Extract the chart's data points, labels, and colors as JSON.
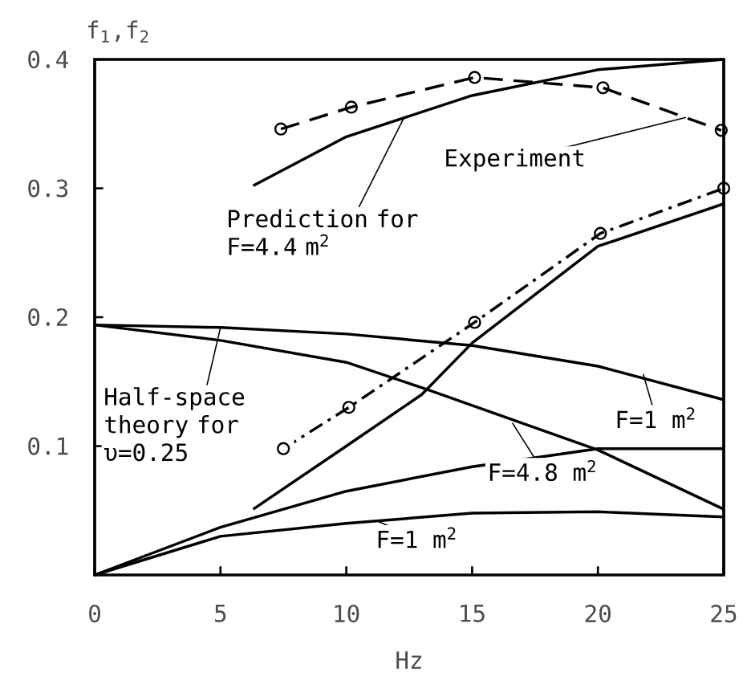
{
  "chart_data": {
    "type": "line",
    "xlabel": "Hz",
    "ylabel": "f$_{1}$,f$_{2}$",
    "xlim": [
      0,
      25
    ],
    "ylim": [
      0,
      0.4
    ],
    "xticks": [
      0,
      5,
      10,
      15,
      20,
      25
    ],
    "yticks": [
      0.1,
      0.2,
      0.3,
      0.4
    ],
    "series": [
      {
        "color": "#000000",
        "marker": "circle",
        "line_style": "dashed",
        "x": [
          7.4,
          10.2,
          15.1,
          20.2,
          24.9
        ],
        "values": [
          0.346,
          0.363,
          0.386,
          0.378,
          0.345
        ]
      },
      {
        "color": "#000000",
        "line_style": "solid",
        "x": [
          6.3,
          10,
          15,
          20,
          25
        ],
        "values": [
          0.302,
          0.34,
          0.372,
          0.392,
          0.4
        ]
      },
      {
        "color": "#000000",
        "marker": "circle",
        "line_style": "dashdot",
        "x": [
          7.5,
          10.1,
          15.1,
          20.1,
          25
        ],
        "values": [
          0.098,
          0.13,
          0.196,
          0.265,
          0.3
        ]
      },
      {
        "color": "#000000",
        "line_style": "solid",
        "x": [
          6.3,
          10,
          13,
          15,
          20,
          25
        ],
        "values": [
          0.051,
          0.1,
          0.14,
          0.18,
          0.255,
          0.288
        ]
      },
      {
        "color": "#000000",
        "line_style": "solid",
        "x": [
          0,
          5,
          10,
          15,
          20,
          25
        ],
        "values": [
          0.194,
          0.192,
          0.187,
          0.178,
          0.162,
          0.136
        ]
      },
      {
        "color": "#000000",
        "line_style": "solid",
        "x": [
          0,
          5,
          10,
          13.2,
          20,
          25
        ],
        "values": [
          0.194,
          0.182,
          0.165,
          0.144,
          0.097,
          0.051
        ]
      },
      {
        "color": "#000000",
        "line_style": "solid",
        "x": [
          0,
          5,
          10,
          15,
          20,
          25
        ],
        "values": [
          0,
          0.037,
          0.065,
          0.084,
          0.098,
          0.098
        ]
      },
      {
        "color": "#000000",
        "line_style": "solid",
        "x": [
          0,
          5,
          10,
          15,
          20,
          25
        ],
        "values": [
          0,
          0.03,
          0.04,
          0.048,
          0.049,
          0.045
        ]
      }
    ],
    "annotations": [
      {
        "text": "Experiment",
        "x": 23.5,
        "y": 0.355
      },
      {
        "text": "Prediction for F=4.4 m$^{2}$",
        "x": 12.3,
        "y": 0.355
      },
      {
        "text": "Half-space theory for υ=0.25",
        "x": 5,
        "y": 0.192
      },
      {
        "text": "F=1 m$^{2}$",
        "x": 21.8,
        "y": 0.156
      },
      {
        "text": "F=4.8 m$^{2}$",
        "x": 16.6,
        "y": 0.118
      },
      {
        "text": "F=1 m$^{2}$",
        "x": 11.2,
        "y": 0.042
      }
    ]
  }
}
